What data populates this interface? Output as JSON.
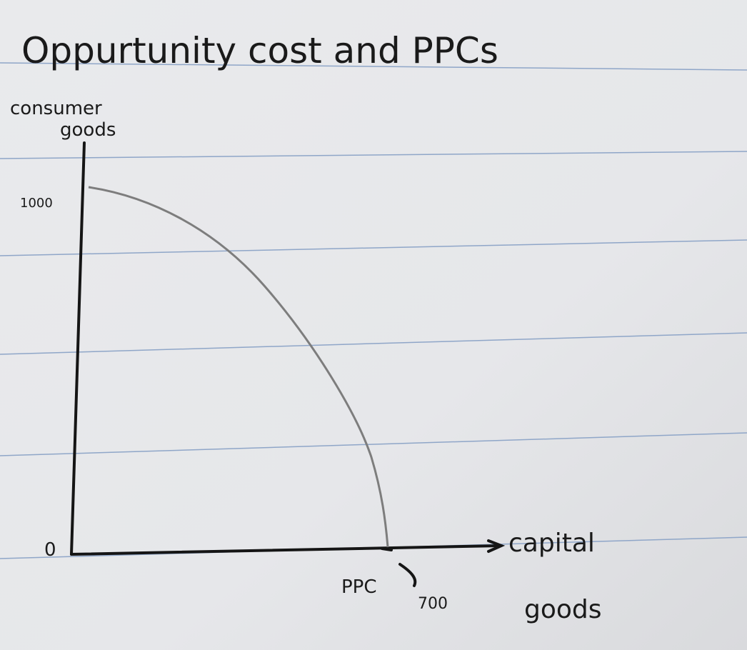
{
  "title": "Oppurtunity cost and PPCs",
  "y_axis_label": [
    "consumer",
    "goods"
  ],
  "x_axis_label": [
    "capital",
    "goods"
  ],
  "origin_label": "0",
  "y_intercept_label": "1000",
  "x_intercept_label": "700",
  "curve_label": "PPC"
}
